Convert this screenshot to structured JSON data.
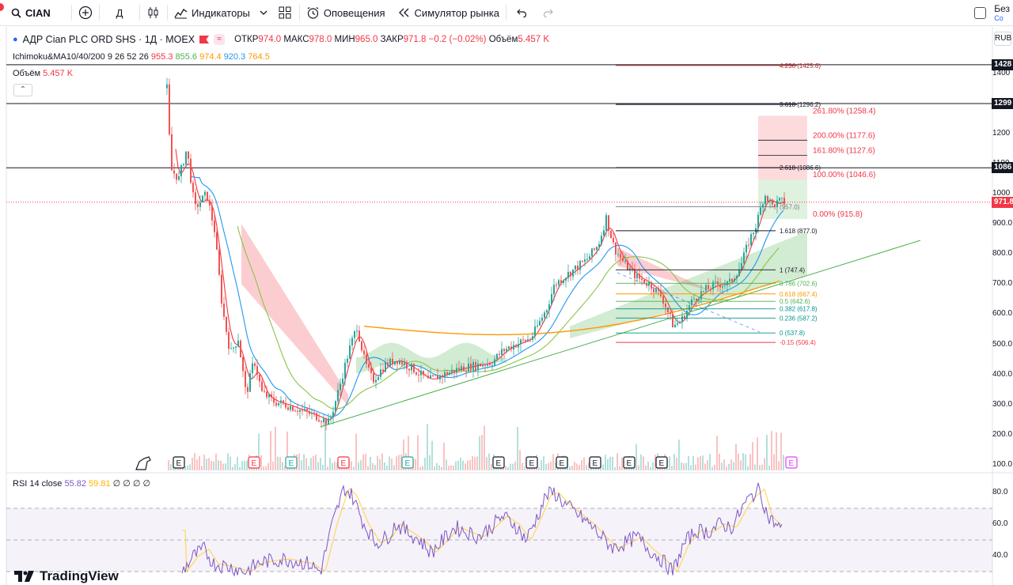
{
  "toolbar": {
    "symbol": "CIAN",
    "interval": "Д",
    "indicators_label": "Индикаторы",
    "alerts_label": "Оповещения",
    "replay_label": "Симулятор рынка",
    "right_label": "Без",
    "right_sub": "Со"
  },
  "legend": {
    "title": "АДР Cian PLC ORD SHS · 1Д · MOEX",
    "open_label": "ОТКР",
    "open": "974.0",
    "high_label": "МАКС",
    "high": "978.0",
    "low_label": "МИН",
    "low": "965.0",
    "close_label": "ЗАКР",
    "close": "971.8",
    "change": "−0.2 (−0.02%)",
    "volume_label": "Объём",
    "volume": "5.457 K"
  },
  "ichimoku": {
    "label": "Ichimoku&MA10/40/200 9 26 52 26",
    "values": [
      "955.3",
      "855.6",
      "974.4",
      "920.3",
      "764.5"
    ],
    "colors": [
      "#f23645",
      "#4caf50",
      "#ff9800",
      "#2196f3",
      "#ff9800"
    ]
  },
  "volume_legend": {
    "label": "Объём",
    "value": "5.457 K"
  },
  "rsi_legend": {
    "label": "RSI 14 close",
    "rsi": "55.82",
    "ma": "59.81",
    "zeros": "∅ ∅ ∅ ∅"
  },
  "currency": "RUB",
  "price_axis": {
    "labels": [
      "1400",
      "1300",
      "1200",
      "1100",
      "1000",
      "900.0",
      "800.0",
      "700.0",
      "600.0",
      "500.0",
      "400.0",
      "300.0",
      "200.0",
      "100.0"
    ],
    "rsi_labels": [
      "80.0",
      "60.0",
      "40.0"
    ]
  },
  "price_tags": [
    {
      "text": "1428",
      "color": "#131722"
    },
    {
      "text": "1299",
      "color": "#131722"
    },
    {
      "text": "1086",
      "color": "#131722"
    },
    {
      "text": "971.8",
      "color": "#f23645"
    }
  ],
  "fib_extension": [
    {
      "label": "4.236 (1425.6)",
      "price": 1425.6,
      "color": "#b71c1c"
    },
    {
      "label": "3.618 (1296.2)",
      "price": 1296.2,
      "color": "#131722"
    },
    {
      "label": "2.618 (1086.6)",
      "price": 1086.6,
      "color": "#131722"
    },
    {
      "label": "(957.0)",
      "price": 957.0,
      "color": "#787b86"
    },
    {
      "label": "1.618 (877.0)",
      "price": 877.0,
      "color": "#131722"
    },
    {
      "label": "1 (747.4)",
      "price": 747.4,
      "color": "#131722"
    }
  ],
  "fib_retracement": [
    {
      "label": "0.786 (702.6)",
      "price": 702.6,
      "color": "#4caf50"
    },
    {
      "label": "0.618 (667.4)",
      "price": 667.4,
      "color": "#ff9800"
    },
    {
      "label": "0.5 (642.6)",
      "price": 642.6,
      "color": "#4caf50"
    },
    {
      "label": "0.382 (617.8)",
      "price": 617.8,
      "color": "#009688"
    },
    {
      "label": "0.236 (587.2)",
      "price": 587.2,
      "color": "#009688"
    },
    {
      "label": "0 (537.8)",
      "price": 537.8,
      "color": "#009688"
    },
    {
      "label": "-0.15 (506.4)",
      "price": 506.4,
      "color": "#f23645"
    }
  ],
  "fib_targets": [
    {
      "label": "261.80% (1258.4)",
      "price": 1258.4
    },
    {
      "label": "200.00% (1177.6)",
      "price": 1177.6
    },
    {
      "label": "161.80% (1127.6)",
      "price": 1127.6
    },
    {
      "label": "100.00% (1046.6)",
      "price": 1046.6
    },
    {
      "label": "0.00% (915.8)",
      "price": 915.8
    }
  ],
  "horizontal_levels": [
    1428,
    1299,
    1086
  ],
  "current_price": 971.8,
  "events": [
    "E",
    "E",
    "E",
    "E",
    "E",
    "E",
    "E",
    "E",
    "E",
    "E",
    "E",
    "E"
  ],
  "logo_text": "TradingView"
}
